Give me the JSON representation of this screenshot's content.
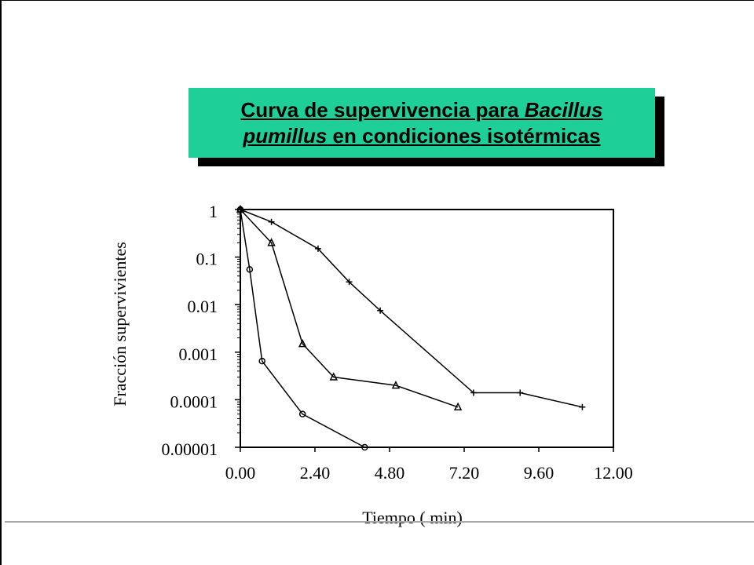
{
  "title": {
    "line1_prefix": "Curva de supervivencia para ",
    "line1_italic": "Bacillus",
    "line2_italic": "pumillus",
    "line2_suffix": " en condiciones isotérmicas",
    "background_color": "#1fcf98"
  },
  "chart_data": {
    "type": "line",
    "xlabel": "Tiempo ( min)",
    "ylabel": "Fracción supervivientes",
    "x_tick_labels": [
      "0.00",
      "2.40",
      "4.80",
      "7.20",
      "9.60",
      "12.00"
    ],
    "x_ticks": [
      0,
      2.4,
      4.8,
      7.2,
      9.6,
      12.0
    ],
    "y_tick_labels": [
      "1",
      "0.1",
      "0.01",
      "0.001",
      "0.0001",
      "0.00001"
    ],
    "y_ticks": [
      1,
      0.1,
      0.01,
      0.001,
      0.0001,
      1e-05
    ],
    "xlim": [
      0,
      12.0
    ],
    "ylim": [
      1e-05,
      1
    ],
    "yscale": "log",
    "grid": false,
    "series": [
      {
        "marker": "circle",
        "x": [
          0,
          0.3,
          0.7,
          2.0,
          4.0
        ],
        "y": [
          1,
          0.055,
          0.00065,
          5e-05,
          1e-05
        ]
      },
      {
        "marker": "triangle",
        "x": [
          0,
          1.0,
          2.0,
          3.0,
          5.0,
          7.0
        ],
        "y": [
          1,
          0.2,
          0.0015,
          0.0003,
          0.0002,
          7e-05
        ]
      },
      {
        "marker": "plus",
        "x": [
          0,
          1.0,
          2.5,
          3.5,
          4.5,
          7.5,
          9.0,
          11.0
        ],
        "y": [
          1,
          0.55,
          0.15,
          0.03,
          0.0075,
          0.00014,
          0.00014,
          7e-05
        ]
      }
    ]
  }
}
